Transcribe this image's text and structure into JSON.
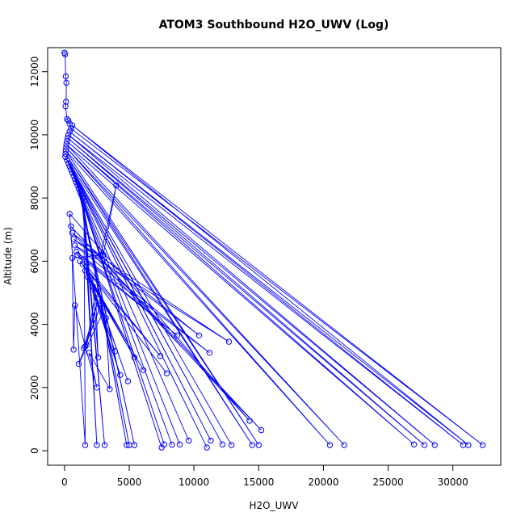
{
  "chart_data": {
    "type": "line",
    "title": "ATOM3 Southbound H2O_UWV (Log)",
    "xlabel": "H2O_UWV",
    "ylabel": "Altitude (m)",
    "xlim": [
      -1300,
      33700
    ],
    "ylim": [
      -460,
      12760
    ],
    "xticks": [
      0,
      5000,
      10000,
      15000,
      20000,
      25000,
      30000
    ],
    "yticks": [
      0,
      2000,
      4000,
      6000,
      8000,
      10000,
      12000
    ],
    "grid": false,
    "legend": "none",
    "marker": "open-circle",
    "series_color": "#0000ff",
    "series": [
      {
        "x": [
          0,
          50,
          100,
          150,
          120,
          80,
          200,
          300,
          400,
          500,
          32300,
          600,
          31200,
          400,
          30800,
          300,
          28600,
          250,
          27800,
          200,
          27000,
          150,
          21600,
          120,
          20500,
          100,
          15000,
          80,
          14500,
          60,
          12900,
          200,
          12200,
          300,
          11300,
          400,
          11000,
          500,
          9600,
          600,
          8900,
          700,
          8300,
          800,
          7700,
          900,
          7500,
          1000,
          5400,
          1100,
          5000,
          1200,
          4800,
          1300,
          3100,
          1400,
          2500,
          1500,
          1600,
          400,
          14300,
          500,
          15200,
          600,
          10400,
          700,
          12700,
          800,
          11200,
          900,
          8700,
          1000,
          7400,
          1200,
          7900,
          1400,
          6100,
          1600,
          5400,
          1800,
          4300,
          2000,
          3900,
          2200,
          2600,
          2400,
          1700,
          2600,
          1500,
          2800,
          1100,
          3000,
          4900,
          3200,
          3500,
          1900,
          2500,
          1600,
          800,
          700,
          600,
          3000,
          4000,
          2800
        ],
        "y": [
          12600,
          12550,
          11850,
          11650,
          11050,
          10900,
          10500,
          10450,
          10350,
          10200,
          180,
          10300,
          180,
          10100,
          180,
          10000,
          180,
          9900,
          180,
          9800,
          200,
          9700,
          180,
          9600,
          180,
          9500,
          180,
          9400,
          180,
          9300,
          180,
          9200,
          200,
          9100,
          320,
          9000,
          100,
          8900,
          320,
          8800,
          200,
          8700,
          190,
          8600,
          200,
          8500,
          100,
          8400,
          180,
          8300,
          180,
          8200,
          180,
          8100,
          180,
          8000,
          180,
          7900,
          180,
          7500,
          950,
          7100,
          650,
          6900,
          3650,
          6700,
          3450,
          6500,
          3100,
          6300,
          3650,
          6200,
          3000,
          6000,
          2450,
          5900,
          2550,
          5700,
          2950,
          5500,
          2400,
          5400,
          3150,
          5200,
          2950,
          5000,
          3350,
          4800,
          3250,
          4600,
          2750,
          4400,
          2200,
          4200,
          1950,
          3100,
          2000,
          3300,
          4600,
          3200,
          6100,
          6200,
          8400,
          6200
        ]
      }
    ]
  }
}
